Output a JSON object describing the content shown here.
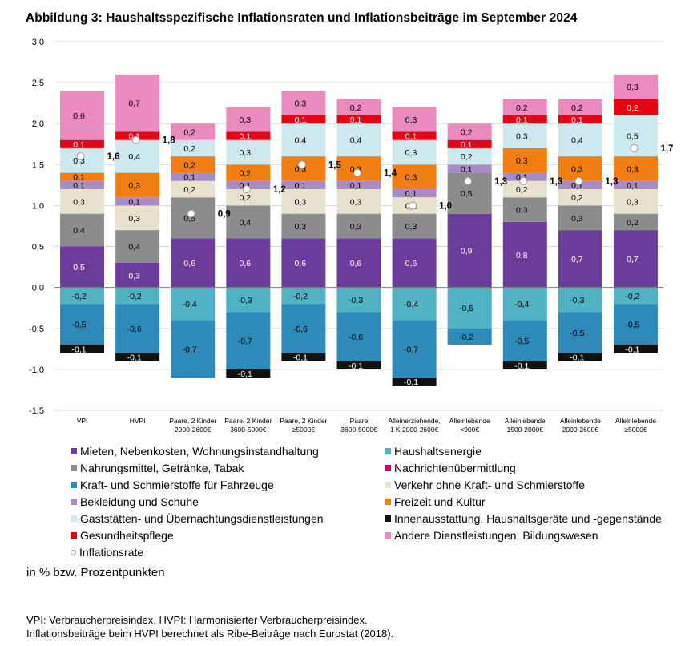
{
  "title": "Abbildung 3: Haushaltsspezifische Inflationsraten und Inflationsbeiträge im September 2024",
  "unit_note": "in % bzw. Prozentpunkten",
  "footnotes": [
    "VPI: Verbraucherpreisindex, HVPI: Harmonisierter Verbraucherpreisindex.",
    "Inflationsbeiträge beim HVPI berechnet als Ribe-Beiträge nach Eurostat (2018)."
  ],
  "chart_data": {
    "type": "bar",
    "stacked": true,
    "ylim": [
      -1.5,
      3.0
    ],
    "yticks": [
      "-1,5",
      "-1,0",
      "-0,5",
      "0,0",
      "0,5",
      "1,0",
      "1,5",
      "2,0",
      "2,5",
      "3,0"
    ],
    "grid": true,
    "categories": [
      [
        "VPI"
      ],
      [
        "HVPI"
      ],
      [
        "Paare, 2 Kinder",
        "2000-2600€"
      ],
      [
        "Paare, 2 Kinder",
        "3600-5000€"
      ],
      [
        "Paare, 2 Kinder",
        "≥5000€"
      ],
      [
        "Paare",
        "3600-5000€"
      ],
      [
        "Alleinerziehende,",
        "1 K 2000-2600€"
      ],
      [
        "Alleinlebende",
        "<900€"
      ],
      [
        "Alleinlebende",
        "1500-2000€"
      ],
      [
        "Alleinlebende",
        "2000-2600€"
      ],
      [
        "Alleinlebende",
        "≥5000€"
      ]
    ],
    "positive_series": [
      {
        "name": "Mieten, Nebenkosten, Wohnungsinstandhaltung",
        "color": "#6a3d9a",
        "values": [
          0.5,
          0.3,
          0.6,
          0.6,
          0.6,
          0.6,
          0.6,
          0.9,
          0.8,
          0.7,
          0.7
        ],
        "labels": [
          "0,5",
          "0,3",
          "0,6",
          "0,6",
          "0,6",
          "0,6",
          "0,6",
          "0,9",
          "0,8",
          "0,7",
          "0,7"
        ],
        "text_color": "#ffffff"
      },
      {
        "name": "Nahrungsmittel, Getränke, Tabak",
        "color": "#8c8c8c",
        "values": [
          0.4,
          0.4,
          0.5,
          0.4,
          0.3,
          0.3,
          0.3,
          0.5,
          0.3,
          0.3,
          0.2
        ],
        "labels": [
          "0,4",
          "0,4",
          "0,5",
          "0,4",
          "0,3",
          "0,3",
          "0,3",
          "0,5",
          "0,3",
          "0,3",
          "0,2"
        ],
        "text_color": "#000000"
      },
      {
        "name": "Verkehr ohne Kraft- und Schmierstoffe",
        "color": "#e7e2cd",
        "values": [
          0.3,
          0.3,
          0.2,
          0.2,
          0.3,
          0.3,
          0.2,
          0.0,
          0.2,
          0.2,
          0.3
        ],
        "labels": [
          "0,3",
          "0,3",
          "0,2",
          "0,2",
          "0,3",
          "0,3",
          "0,2",
          "",
          "0,2",
          "0,2",
          "0,3"
        ],
        "text_color": "#000000"
      },
      {
        "name": "Bekleidung und Schuhe",
        "color": "#a98bc6",
        "values": [
          0.1,
          0.1,
          0.1,
          0.1,
          0.1,
          0.1,
          0.1,
          0.1,
          0.1,
          0.1,
          0.1
        ],
        "labels": [
          "0,1",
          "0,1",
          "0,1",
          "0,1",
          "0,1",
          "0,1",
          "0,1",
          "0,1",
          "0,1",
          "0,1",
          "0,1"
        ],
        "text_color": "#000000"
      },
      {
        "name": "Freizeit und Kultur",
        "color": "#f07e12",
        "values": [
          0.1,
          0.3,
          0.2,
          0.2,
          0.3,
          0.3,
          0.3,
          0.0,
          0.3,
          0.3,
          0.3
        ],
        "labels": [
          "0,1",
          "0,3",
          "0,2",
          "0,2",
          "0,3",
          "0,3",
          "0,3",
          "",
          "0,3",
          "0,3",
          "0,3"
        ],
        "text_color": "#000000"
      },
      {
        "name": "Gaststätten- und Übernachtungsdienstleistungen",
        "color": "#cde8ef",
        "values": [
          0.3,
          0.4,
          0.2,
          0.3,
          0.4,
          0.4,
          0.3,
          0.2,
          0.3,
          0.4,
          0.5
        ],
        "labels": [
          "0,3",
          "0,4",
          "0,2",
          "0,3",
          "0,4",
          "0,4",
          "0,3",
          "0,2",
          "0,3",
          "0,4",
          "0,5"
        ],
        "text_color": "#000000"
      },
      {
        "name": "Gesundheitspflege",
        "color": "#e30613",
        "values": [
          0.1,
          0.1,
          0.0,
          0.1,
          0.1,
          0.1,
          0.1,
          0.1,
          0.1,
          0.1,
          0.2
        ],
        "labels": [
          "0,1",
          "0,1",
          "",
          "0,1",
          "0,1",
          "0,1",
          "0,1",
          "0,1",
          "0,1",
          "0,1",
          "0,2"
        ],
        "text_color": "#ffffff"
      },
      {
        "name": "Andere Dienstleistungen, Bildungswesen",
        "color": "#e98cbd",
        "values": [
          0.6,
          0.7,
          0.2,
          0.3,
          0.3,
          0.2,
          0.3,
          0.2,
          0.2,
          0.2,
          0.3
        ],
        "labels": [
          "0,6",
          "0,7",
          "0,2",
          "0,3",
          "0,3",
          "0,2",
          "0,3",
          "0,2",
          "0,2",
          "0,2",
          "0,3"
        ],
        "text_color": "#000000"
      }
    ],
    "negative_series": [
      {
        "name": "Haushaltsenergie",
        "color": "#4fb3c4",
        "values": [
          -0.2,
          -0.2,
          -0.4,
          -0.3,
          -0.2,
          -0.3,
          -0.4,
          -0.5,
          -0.4,
          -0.3,
          -0.2
        ],
        "labels": [
          "-0,2",
          "-0,2",
          "-0,4",
          "-0,3",
          "-0,2",
          "-0,3",
          "-0,4",
          "-0,5",
          "-0,4",
          "-0,3",
          "-0,2"
        ],
        "text_color": "#000000"
      },
      {
        "name": "Kraft- und Schmierstoffe für Fahrzeuge",
        "color": "#2e8ab8",
        "values": [
          -0.5,
          -0.6,
          -0.7,
          -0.7,
          -0.6,
          -0.6,
          -0.7,
          -0.2,
          -0.5,
          -0.5,
          -0.5
        ],
        "labels": [
          "-0,5",
          "-0,6",
          "-0,7",
          "-0,7",
          "-0,6",
          "-0,6",
          "-0,7",
          "-0,2",
          "-0,5",
          "-0,5",
          "-0,5"
        ],
        "text_color": "#000000"
      },
      {
        "name": "Innenausstattung, Haushaltsgeräte und -gegenstände",
        "color": "#111111",
        "values": [
          -0.1,
          -0.1,
          0.0,
          -0.1,
          -0.1,
          -0.1,
          -0.1,
          0.0,
          -0.1,
          -0.1,
          -0.1
        ],
        "labels": [
          "-0,1",
          "-0,1",
          "",
          "-0,1",
          "-0,1",
          "-0,1",
          "-0,1",
          "",
          "-0,1",
          "-0,1",
          "-0,1"
        ],
        "text_color": "#ffffff"
      },
      {
        "name": "Nachrichtenübermittlung",
        "color": "#d6006f",
        "values": [
          0,
          0,
          0,
          0,
          0,
          0,
          0,
          0,
          0,
          0,
          0
        ],
        "labels": [
          "",
          "",
          "",
          "",
          "",
          "",
          "",
          "",
          "",
          "",
          ""
        ],
        "text_color": "#ffffff"
      }
    ],
    "inflation_rate": {
      "name": "Inflationsrate",
      "values": [
        1.6,
        1.8,
        0.9,
        1.2,
        1.5,
        1.4,
        1.0,
        1.3,
        1.3,
        1.3,
        1.7
      ],
      "labels": [
        "1,6",
        "1,8",
        "0,9",
        "1,2",
        "1,5",
        "1,4",
        "1,0",
        "1,3",
        "1,3",
        "1,3",
        "1,7"
      ]
    }
  },
  "legend": [
    {
      "label": "Mieten, Nebenkosten, Wohnungsinstandhaltung",
      "color": "#6a3d9a",
      "shape": "square"
    },
    {
      "label": "Haushaltsenergie",
      "color": "#4fb3c4",
      "shape": "square"
    },
    {
      "label": "Nahrungsmittel, Getränke, Tabak",
      "color": "#8c8c8c",
      "shape": "square"
    },
    {
      "label": "Nachrichtenübermittlung",
      "color": "#d6006f",
      "shape": "square"
    },
    {
      "label": "Kraft- und Schmierstoffe für Fahrzeuge",
      "color": "#2e8ab8",
      "shape": "square"
    },
    {
      "label": "Verkehr ohne Kraft- und Schmierstoffe",
      "color": "#e7e2cd",
      "shape": "square"
    },
    {
      "label": "Bekleidung und Schuhe",
      "color": "#a98bc6",
      "shape": "square"
    },
    {
      "label": "Freizeit und Kultur",
      "color": "#f07e12",
      "shape": "square"
    },
    {
      "label": "Gaststätten- und Übernachtungsdienstleistungen",
      "color": "#cde8ef",
      "shape": "square"
    },
    {
      "label": "Innenausstattung, Haushaltsgeräte und -gegenstände",
      "color": "#111111",
      "shape": "square"
    },
    {
      "label": "Gesundheitspflege",
      "color": "#e30613",
      "shape": "square"
    },
    {
      "label": "Andere Dienstleistungen, Bildungswesen",
      "color": "#e98cbd",
      "shape": "square"
    },
    {
      "label": "Inflationsrate",
      "color": "#ffffff",
      "shape": "circle"
    }
  ]
}
